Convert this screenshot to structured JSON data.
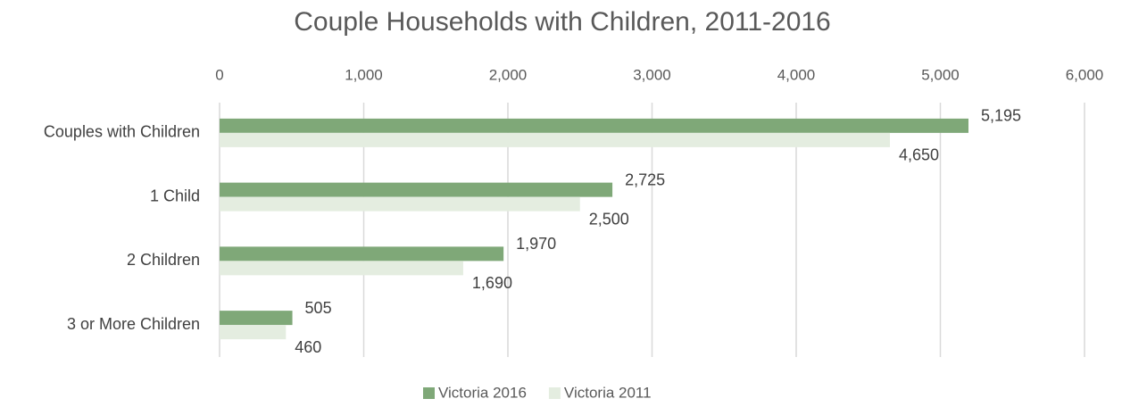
{
  "chart_data": {
    "type": "bar",
    "orientation": "horizontal",
    "title": "Couple Households with Children, 2011-2016",
    "categories": [
      "Couples with Children",
      "1 Child",
      "2 Children",
      "3 or More Children"
    ],
    "series": [
      {
        "name": "Victoria 2016",
        "color": "#7fa878",
        "values": [
          5195,
          2725,
          1970,
          505
        ],
        "value_labels": [
          "5,195",
          "2,725",
          "1,970",
          "505"
        ]
      },
      {
        "name": "Victoria 2011",
        "color": "#e4ede0",
        "values": [
          4650,
          2500,
          1690,
          460
        ],
        "value_labels": [
          "4,650",
          "2,500",
          "1,690",
          "460"
        ]
      }
    ],
    "xlim": [
      0,
      6000
    ],
    "xticks": [
      0,
      {
        "value": 1000,
        "label": "1,000"
      },
      {
        "value": 2000,
        "label": "2,000"
      },
      {
        "value": 3000,
        "label": "3,000"
      },
      {
        "value": 4000,
        "label": "4,000"
      },
      {
        "value": 5000,
        "label": "5,000"
      },
      {
        "value": 6000,
        "label": "6,000"
      }
    ],
    "grid": true,
    "legend": "bottom"
  }
}
